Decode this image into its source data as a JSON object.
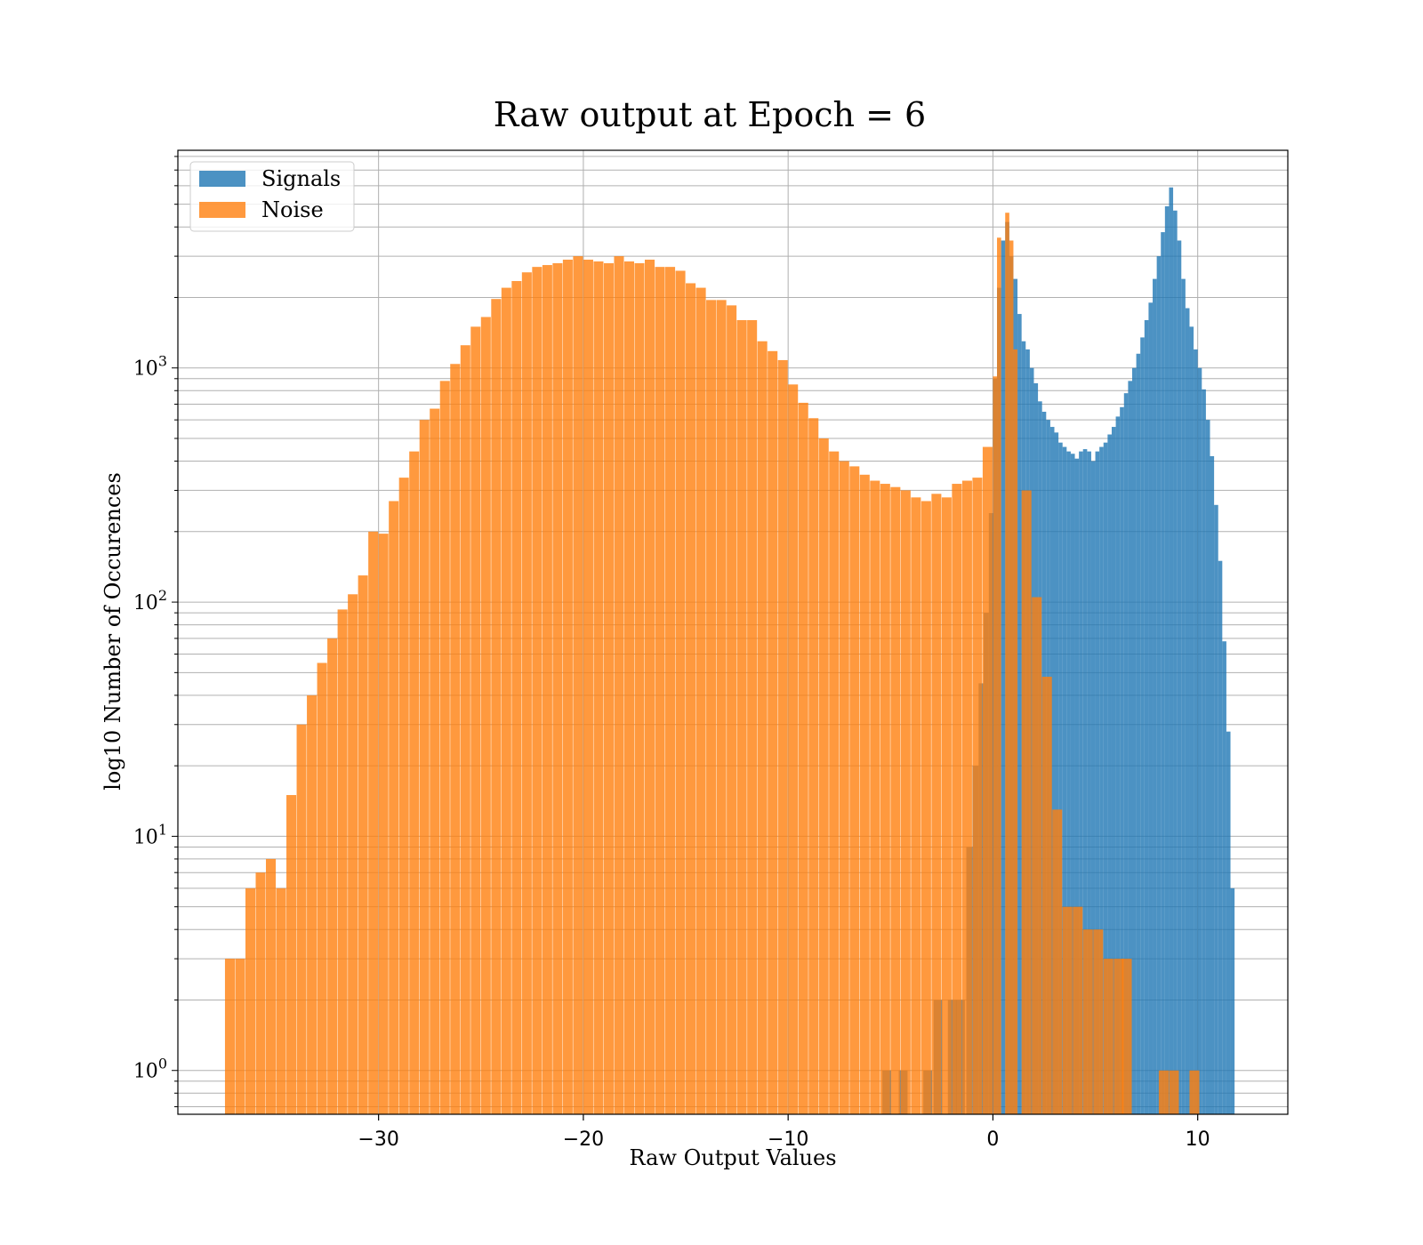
{
  "chart_data": {
    "type": "bar",
    "title": "Raw output at Epoch = 6",
    "xlabel": "Raw Output Values",
    "ylabel": "log10 Number of Occurences",
    "x_ticks": [
      -30,
      -20,
      -10,
      0,
      10
    ],
    "x_tick_labels": [
      "−30",
      "−20",
      "−10",
      "0",
      "10"
    ],
    "xlim": [
      -39.8,
      14.4
    ],
    "y_scale": "log",
    "ylim": [
      0.65,
      8500
    ],
    "y_ticks": [
      1,
      10,
      100,
      1000
    ],
    "y_tick_labels": [
      {
        "base": "10",
        "exp": "0"
      },
      {
        "base": "10",
        "exp": "1"
      },
      {
        "base": "10",
        "exp": "2"
      },
      {
        "base": "10",
        "exp": "3"
      }
    ],
    "grid": true,
    "legend": {
      "position": "top-left"
    },
    "series": [
      {
        "name": "Signals",
        "color": "#1f77b4",
        "opacity": 0.8,
        "bins": [
          [
            -5.4,
            0.43,
            1
          ],
          [
            -4.6,
            0.43,
            1
          ],
          [
            -3.4,
            0.43,
            1
          ],
          [
            -2.9,
            0.43,
            2
          ],
          [
            -2.2,
            0.43,
            2
          ],
          [
            -1.8,
            0.43,
            2
          ],
          [
            -1.3,
            0.3,
            9
          ],
          [
            -1.0,
            0.3,
            20
          ],
          [
            -0.7,
            0.25,
            45
          ],
          [
            -0.45,
            0.25,
            90
          ],
          [
            -0.2,
            0.2,
            240
          ],
          [
            0.0,
            0.2,
            900
          ],
          [
            0.2,
            0.2,
            2200
          ],
          [
            0.4,
            0.2,
            3500
          ],
          [
            0.6,
            0.2,
            4200
          ],
          [
            0.8,
            0.2,
            3000
          ],
          [
            1.0,
            0.2,
            2400
          ],
          [
            1.2,
            0.2,
            1700
          ],
          [
            1.4,
            0.2,
            1300
          ],
          [
            1.6,
            0.2,
            1200
          ],
          [
            1.8,
            0.2,
            1000
          ],
          [
            2.0,
            0.2,
            860
          ],
          [
            2.2,
            0.2,
            720
          ],
          [
            2.4,
            0.2,
            650
          ],
          [
            2.6,
            0.2,
            600
          ],
          [
            2.8,
            0.2,
            560
          ],
          [
            3.0,
            0.2,
            530
          ],
          [
            3.2,
            0.2,
            480
          ],
          [
            3.4,
            0.2,
            460
          ],
          [
            3.6,
            0.2,
            440
          ],
          [
            3.8,
            0.2,
            430
          ],
          [
            4.0,
            0.2,
            410
          ],
          [
            4.2,
            0.2,
            440
          ],
          [
            4.4,
            0.2,
            450
          ],
          [
            4.6,
            0.2,
            440
          ],
          [
            4.8,
            0.2,
            400
          ],
          [
            5.0,
            0.2,
            440
          ],
          [
            5.2,
            0.2,
            460
          ],
          [
            5.4,
            0.2,
            480
          ],
          [
            5.6,
            0.2,
            520
          ],
          [
            5.8,
            0.2,
            560
          ],
          [
            6.0,
            0.2,
            620
          ],
          [
            6.2,
            0.2,
            680
          ],
          [
            6.4,
            0.2,
            780
          ],
          [
            6.6,
            0.2,
            880
          ],
          [
            6.8,
            0.2,
            1000
          ],
          [
            7.0,
            0.2,
            1150
          ],
          [
            7.2,
            0.2,
            1350
          ],
          [
            7.4,
            0.2,
            1600
          ],
          [
            7.6,
            0.2,
            1900
          ],
          [
            7.8,
            0.2,
            2400
          ],
          [
            8.0,
            0.2,
            3000
          ],
          [
            8.2,
            0.2,
            3800
          ],
          [
            8.4,
            0.2,
            4900
          ],
          [
            8.6,
            0.2,
            5900
          ],
          [
            8.8,
            0.2,
            4700
          ],
          [
            9.0,
            0.2,
            3500
          ],
          [
            9.2,
            0.2,
            2400
          ],
          [
            9.4,
            0.2,
            1800
          ],
          [
            9.6,
            0.2,
            1500
          ],
          [
            9.8,
            0.2,
            1200
          ],
          [
            10.0,
            0.2,
            1000
          ],
          [
            10.2,
            0.2,
            810
          ],
          [
            10.4,
            0.2,
            600
          ],
          [
            10.6,
            0.2,
            420
          ],
          [
            10.8,
            0.2,
            260
          ],
          [
            11.0,
            0.2,
            150
          ],
          [
            11.2,
            0.2,
            68
          ],
          [
            11.4,
            0.2,
            28
          ],
          [
            11.6,
            0.2,
            6
          ]
        ]
      },
      {
        "name": "Noise",
        "color": "#ff7f0e",
        "opacity": 0.8,
        "bins": [
          [
            -37.5,
            0.48,
            3
          ],
          [
            -37.0,
            0.48,
            3
          ],
          [
            -36.5,
            0.48,
            6
          ],
          [
            -36.0,
            0.48,
            7
          ],
          [
            -35.5,
            0.48,
            8
          ],
          [
            -35.0,
            0.48,
            6
          ],
          [
            -34.5,
            0.48,
            15
          ],
          [
            -34.0,
            0.48,
            30
          ],
          [
            -33.5,
            0.48,
            40
          ],
          [
            -33.0,
            0.48,
            55
          ],
          [
            -32.5,
            0.48,
            70
          ],
          [
            -32.0,
            0.48,
            93
          ],
          [
            -31.5,
            0.48,
            108
          ],
          [
            -31.0,
            0.48,
            130
          ],
          [
            -30.5,
            0.48,
            200
          ],
          [
            -30.0,
            0.48,
            196
          ],
          [
            -29.5,
            0.48,
            270
          ],
          [
            -29.0,
            0.48,
            340
          ],
          [
            -28.5,
            0.48,
            440
          ],
          [
            -28.0,
            0.48,
            600
          ],
          [
            -27.5,
            0.48,
            670
          ],
          [
            -27.0,
            0.48,
            880
          ],
          [
            -26.5,
            0.48,
            1040
          ],
          [
            -26.0,
            0.48,
            1250
          ],
          [
            -25.5,
            0.48,
            1500
          ],
          [
            -25.0,
            0.48,
            1650
          ],
          [
            -24.5,
            0.48,
            1970
          ],
          [
            -24.0,
            0.48,
            2200
          ],
          [
            -23.5,
            0.48,
            2350
          ],
          [
            -23.0,
            0.48,
            2560
          ],
          [
            -22.5,
            0.48,
            2700
          ],
          [
            -22.0,
            0.48,
            2750
          ],
          [
            -21.5,
            0.48,
            2800
          ],
          [
            -21.0,
            0.48,
            2900
          ],
          [
            -20.5,
            0.48,
            3000
          ],
          [
            -20.0,
            0.48,
            2900
          ],
          [
            -19.5,
            0.48,
            2850
          ],
          [
            -19.0,
            0.48,
            2800
          ],
          [
            -18.5,
            0.48,
            3000
          ],
          [
            -18.0,
            0.48,
            2850
          ],
          [
            -17.5,
            0.48,
            2800
          ],
          [
            -17.0,
            0.48,
            2900
          ],
          [
            -16.5,
            0.48,
            2700
          ],
          [
            -16.0,
            0.48,
            2700
          ],
          [
            -15.5,
            0.48,
            2600
          ],
          [
            -15.0,
            0.48,
            2300
          ],
          [
            -14.5,
            0.48,
            2200
          ],
          [
            -14.0,
            0.48,
            1950
          ],
          [
            -13.5,
            0.48,
            1950
          ],
          [
            -13.0,
            0.48,
            1850
          ],
          [
            -12.5,
            0.48,
            1600
          ],
          [
            -12.0,
            0.48,
            1600
          ],
          [
            -11.5,
            0.48,
            1300
          ],
          [
            -11.0,
            0.48,
            1180
          ],
          [
            -10.5,
            0.48,
            1080
          ],
          [
            -10.0,
            0.48,
            850
          ],
          [
            -9.5,
            0.48,
            710
          ],
          [
            -9.0,
            0.48,
            610
          ],
          [
            -8.5,
            0.48,
            500
          ],
          [
            -8.0,
            0.48,
            440
          ],
          [
            -7.5,
            0.48,
            400
          ],
          [
            -7.0,
            0.48,
            380
          ],
          [
            -6.5,
            0.48,
            350
          ],
          [
            -6.0,
            0.48,
            330
          ],
          [
            -5.5,
            0.48,
            320
          ],
          [
            -5.0,
            0.48,
            310
          ],
          [
            -4.5,
            0.48,
            300
          ],
          [
            -4.0,
            0.48,
            280
          ],
          [
            -3.5,
            0.48,
            270
          ],
          [
            -3.0,
            0.48,
            290
          ],
          [
            -2.5,
            0.48,
            280
          ],
          [
            -2.0,
            0.48,
            320
          ],
          [
            -1.5,
            0.48,
            330
          ],
          [
            -1.0,
            0.48,
            340
          ],
          [
            -0.5,
            0.48,
            460
          ],
          [
            0.0,
            0.2,
            920
          ],
          [
            0.2,
            0.2,
            3600
          ],
          [
            0.6,
            0.2,
            4600
          ],
          [
            0.8,
            0.2,
            3500
          ],
          [
            1.0,
            0.2,
            1200
          ],
          [
            1.4,
            0.48,
            300
          ],
          [
            1.9,
            0.48,
            105
          ],
          [
            2.4,
            0.48,
            48
          ],
          [
            2.9,
            0.48,
            13
          ],
          [
            3.4,
            0.48,
            5
          ],
          [
            3.9,
            0.48,
            5
          ],
          [
            4.4,
            0.48,
            4
          ],
          [
            4.9,
            0.48,
            4
          ],
          [
            5.4,
            0.48,
            3
          ],
          [
            5.9,
            0.48,
            3
          ],
          [
            6.3,
            0.48,
            3
          ],
          [
            8.1,
            0.48,
            1
          ],
          [
            8.6,
            0.48,
            1
          ],
          [
            9.6,
            0.48,
            1
          ]
        ]
      }
    ]
  }
}
